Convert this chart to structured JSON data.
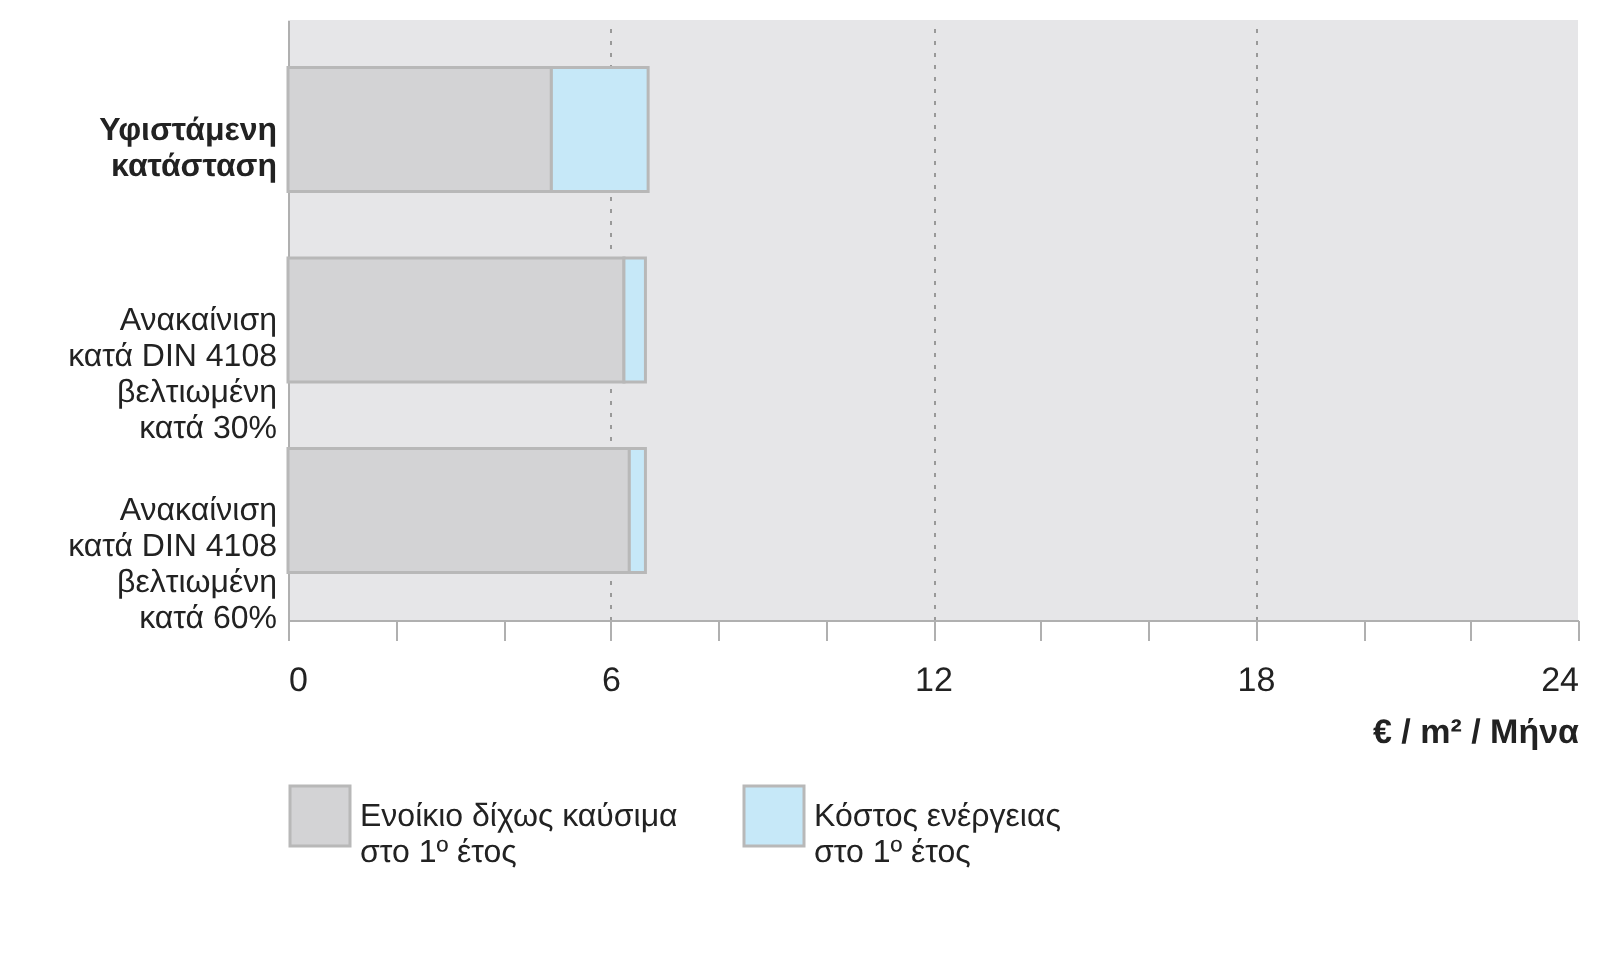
{
  "chart_data": {
    "type": "bar",
    "orientation": "horizontal",
    "stacked": true,
    "categories": [
      "Υφιστάμενη\nκατάσταση",
      "Ανακαίνιση\nκατά DIN 4108\nβελτιωμένη\nκατά 30%",
      "Ανακαίνιση\nκατά DIN 4108\nβελτιωμένη\nκατά 60%"
    ],
    "series": [
      {
        "name": "Ενοίκιο δίχως καύσιμα\nστο 1º έτος",
        "color": "#d3d3d5",
        "values": [
          4.9,
          6.25,
          6.35
        ]
      },
      {
        "name": "Κόστος ενέργειας\nστο 1º έτος",
        "color": "#c6e8f8",
        "values": [
          1.8,
          0.4,
          0.3
        ]
      }
    ],
    "xlabel": "€ / m² / Μήνα",
    "xlim": [
      0,
      24
    ],
    "xticks": [
      0,
      {
        "value": 2,
        "label": null
      },
      {
        "value": 4,
        "label": null
      },
      6,
      {
        "value": 8,
        "label": null
      },
      {
        "value": 10,
        "label": null
      },
      12,
      {
        "value": 14,
        "label": null
      },
      {
        "value": 16,
        "label": null
      },
      18,
      {
        "value": 20,
        "label": null
      },
      {
        "value": 22,
        "label": null
      },
      24
    ],
    "grid": "x",
    "legend": "bottom"
  }
}
